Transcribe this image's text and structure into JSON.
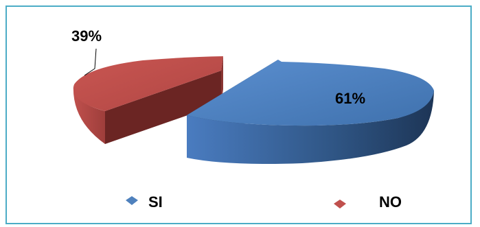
{
  "chart_data": {
    "type": "pie",
    "title": "",
    "slices": [
      {
        "label": "SI",
        "value": 61,
        "display": "61%",
        "color": "#4f81bd"
      },
      {
        "label": "NO",
        "value": 39,
        "display": "39%",
        "color": "#c0504d"
      }
    ],
    "legend_position": "bottom",
    "style": "3d-exploded"
  }
}
